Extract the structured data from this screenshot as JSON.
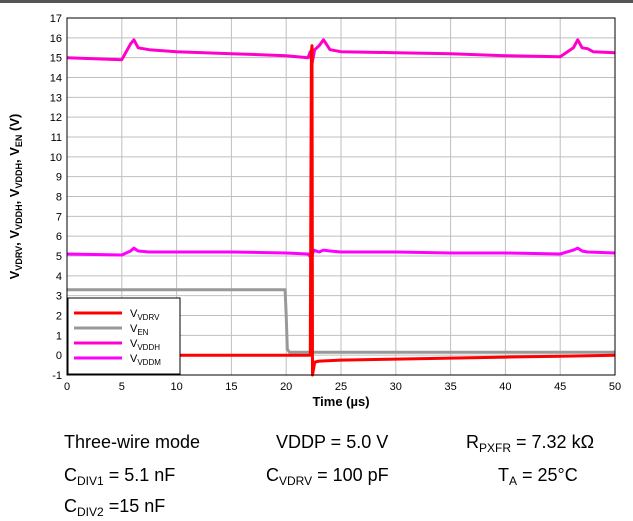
{
  "chart_data": {
    "type": "line",
    "xlabel": "Time (µs)",
    "ylabel_parts": [
      "V",
      "VDRV",
      ", V",
      "VDDH",
      ", V",
      "VDDH",
      ", V",
      "EN",
      " (V)"
    ],
    "xlim": [
      0,
      50
    ],
    "ylim": [
      -1,
      17
    ],
    "x_ticks": [
      0,
      5,
      10,
      15,
      20,
      25,
      30,
      35,
      40,
      45,
      50
    ],
    "y_ticks": [
      -1,
      0,
      1,
      2,
      3,
      4,
      5,
      6,
      7,
      8,
      9,
      10,
      11,
      12,
      13,
      14,
      15,
      16,
      17
    ],
    "grid": true,
    "legend_position": "bottom-left",
    "series": [
      {
        "name": "VDRV",
        "name_main": "V",
        "name_sub": "VDRV",
        "color": "#ff0000",
        "x": [
          0,
          22.2,
          22.3,
          22.35,
          22.4,
          22.6,
          23,
          25,
          30,
          35,
          40,
          45,
          50
        ],
        "y": [
          0,
          0,
          15.3,
          15.6,
          -1,
          -0.35,
          -0.3,
          -0.25,
          -0.2,
          -0.15,
          -0.1,
          -0.05,
          0
        ]
      },
      {
        "name": "EN",
        "name_main": "V",
        "name_sub": "EN",
        "color": "#999999",
        "x": [
          0,
          19.9,
          20,
          20.1,
          20.3,
          22,
          24,
          30,
          40,
          50
        ],
        "y": [
          3.3,
          3.3,
          2.0,
          0.3,
          0.15,
          0.15,
          0.15,
          0.15,
          0.15,
          0.15
        ]
      },
      {
        "name": "VDDH",
        "name_main": "V",
        "name_sub": "VDDH",
        "color": "#ff00cc",
        "x": [
          0,
          5,
          5.8,
          6.1,
          6.5,
          7.5,
          10,
          15,
          20,
          22.0,
          22.2,
          22.35,
          22.6,
          23.0,
          23.4,
          24,
          25,
          30,
          35,
          40,
          45,
          46.2,
          46.6,
          47.0,
          47.5,
          48,
          50
        ],
        "y": [
          15.0,
          14.9,
          15.7,
          15.9,
          15.5,
          15.4,
          15.3,
          15.2,
          15.1,
          15.0,
          15.3,
          14.7,
          15.4,
          15.6,
          15.9,
          15.4,
          15.3,
          15.25,
          15.2,
          15.1,
          15.05,
          15.5,
          15.9,
          15.5,
          15.45,
          15.3,
          15.25
        ]
      },
      {
        "name": "VDDM",
        "name_main": "V",
        "name_sub": "VDDM",
        "color": "#ff00ff",
        "x": [
          0,
          5,
          5.8,
          6.1,
          6.5,
          7.5,
          10,
          15,
          20,
          22.0,
          22.3,
          22.5,
          23.0,
          23.4,
          24,
          25,
          30,
          35,
          40,
          45,
          46.2,
          46.6,
          47.0,
          47.5,
          50
        ],
        "y": [
          5.1,
          5.05,
          5.25,
          5.4,
          5.25,
          5.2,
          5.2,
          5.2,
          5.15,
          5.1,
          4.9,
          5.3,
          5.2,
          5.3,
          5.25,
          5.2,
          5.2,
          5.15,
          5.15,
          5.1,
          5.3,
          5.4,
          5.25,
          5.2,
          5.15
        ]
      }
    ]
  },
  "conditions": [
    {
      "id": "mode",
      "main": "Three-wire mode",
      "sub": "",
      "rest": ""
    },
    {
      "id": "vddp",
      "main": "VDDP = 5.0 V",
      "sub": "",
      "rest": ""
    },
    {
      "id": "rpxfr",
      "main": "R",
      "sub": "PXFR",
      "rest": " = 7.32 kΩ"
    },
    {
      "id": "cdiv1",
      "main": "C",
      "sub": "DIV1",
      "rest": " = 5.1 nF"
    },
    {
      "id": "cvdrv",
      "main": "C",
      "sub": "VDRV",
      "rest": " = 100 pF"
    },
    {
      "id": "ta",
      "main": "T",
      "sub": "A",
      "rest": " = 25°C"
    },
    {
      "id": "cdiv2",
      "main": "C",
      "sub": "DIV2",
      "rest": " =15 nF"
    }
  ]
}
